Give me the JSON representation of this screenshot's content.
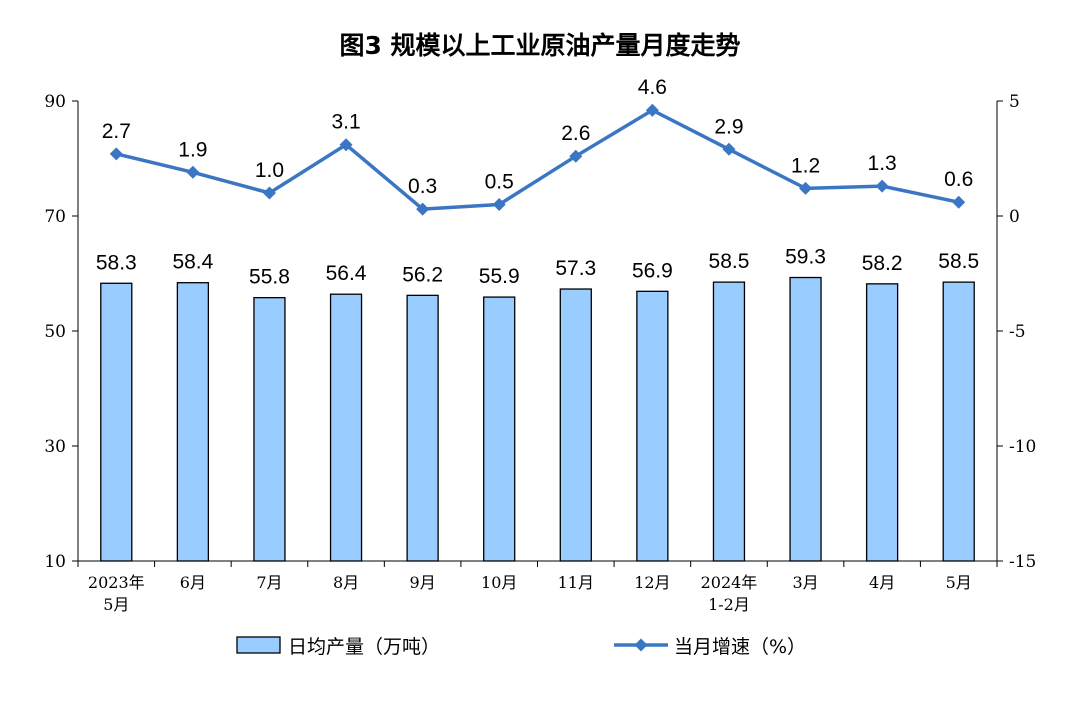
{
  "chart_data": {
    "type": "bar",
    "title": "图3  规模以上工业原油产量月度走势",
    "categories": [
      [
        "2023年",
        "5月"
      ],
      [
        "6月"
      ],
      [
        "7月"
      ],
      [
        "8月"
      ],
      [
        "9月"
      ],
      [
        "10月"
      ],
      [
        "11月"
      ],
      [
        "12月"
      ],
      [
        "2024年",
        "1-2月"
      ],
      [
        "3月"
      ],
      [
        "4月"
      ],
      [
        "5月"
      ]
    ],
    "series": [
      {
        "name": "日均产量（万吨）",
        "type": "bar",
        "axis": "left",
        "color": "#99ccff",
        "values": [
          58.3,
          58.4,
          55.8,
          56.4,
          56.2,
          55.9,
          57.3,
          56.9,
          58.5,
          59.3,
          58.2,
          58.5
        ],
        "labels": [
          "58.3",
          "58.4",
          "55.8",
          "56.4",
          "56.2",
          "55.9",
          "57.3",
          "56.9",
          "58.5",
          "59.3",
          "58.2",
          "58.5"
        ]
      },
      {
        "name": "当月增速（%）",
        "type": "line",
        "axis": "right",
        "color": "#3a76c4",
        "marker": "diamond",
        "values": [
          2.7,
          1.9,
          1.0,
          3.1,
          0.3,
          0.5,
          2.6,
          4.6,
          2.9,
          1.2,
          1.3,
          0.6
        ],
        "labels": [
          "2.7",
          "1.9",
          "1.0",
          "3.1",
          "0.3",
          "0.5",
          "2.6",
          "4.6",
          "2.9",
          "1.2",
          "1.3",
          "0.6"
        ]
      }
    ],
    "y_left": {
      "range": [
        10,
        90
      ],
      "ticks": [
        "90",
        "70",
        "50",
        "30",
        "10"
      ]
    },
    "y_right": {
      "range": [
        -15,
        5
      ],
      "ticks": [
        "5",
        "0",
        "-5",
        "-10",
        "-15"
      ]
    },
    "grid": false,
    "legend_position": "bottom"
  }
}
